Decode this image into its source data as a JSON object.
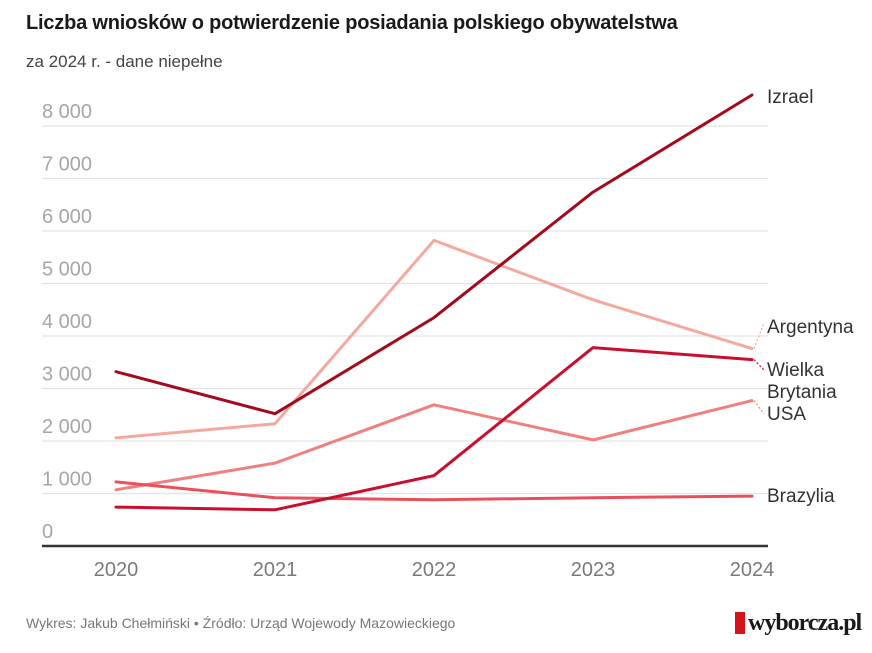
{
  "header": {
    "title": "Liczba wniosków o potwierdzenie posiadania polskiego obywatelstwa",
    "subtitle": "za 2024 r. - dane niepełne"
  },
  "footer": {
    "credit": "Wykres: Jakub Chełmiński • Źródło: Urząd Wojewody Mazowieckiego",
    "logo_text": "wyborcza.pl",
    "logo_color": "#d6121b"
  },
  "chart_data": {
    "type": "line",
    "title": "Liczba wniosków o potwierdzenie posiadania polskiego obywatelstwa",
    "subtitle": "za 2024 r. - dane niepełne",
    "xlabel": "",
    "ylabel": "",
    "x": [
      "2020",
      "2021",
      "2022",
      "2023",
      "2024"
    ],
    "ylim": [
      0,
      8000
    ],
    "yticks": [
      0,
      1000,
      2000,
      3000,
      4000,
      5000,
      6000,
      7000,
      8000
    ],
    "ytick_labels": [
      "0",
      "1 000",
      "2 000",
      "3 000",
      "4 000",
      "5 000",
      "6 000",
      "7 000",
      "8 000"
    ],
    "grid": true,
    "legend": "direct labels at right end of lines",
    "series": [
      {
        "name": "Izrael",
        "label_lines": [
          "Izrael"
        ],
        "color": "#a30a1c",
        "values": [
          3320,
          2520,
          4350,
          6740,
          8590
        ]
      },
      {
        "name": "Argentyna",
        "label_lines": [
          "Argentyna"
        ],
        "color": "#f4a99f",
        "values": [
          2060,
          2330,
          5820,
          4690,
          3760
        ]
      },
      {
        "name": "Wielka Brytania",
        "label_lines": [
          "Wielka",
          "Brytania"
        ],
        "color": "#c8102e",
        "values": [
          740,
          690,
          1340,
          3780,
          3550
        ]
      },
      {
        "name": "USA",
        "label_lines": [
          "USA"
        ],
        "color": "#f08080",
        "values": [
          1070,
          1580,
          2690,
          2020,
          2770
        ]
      },
      {
        "name": "Brazylia",
        "label_lines": [
          "Brazylia"
        ],
        "color": "#e8505b",
        "values": [
          1220,
          920,
          880,
          920,
          950
        ]
      }
    ]
  }
}
